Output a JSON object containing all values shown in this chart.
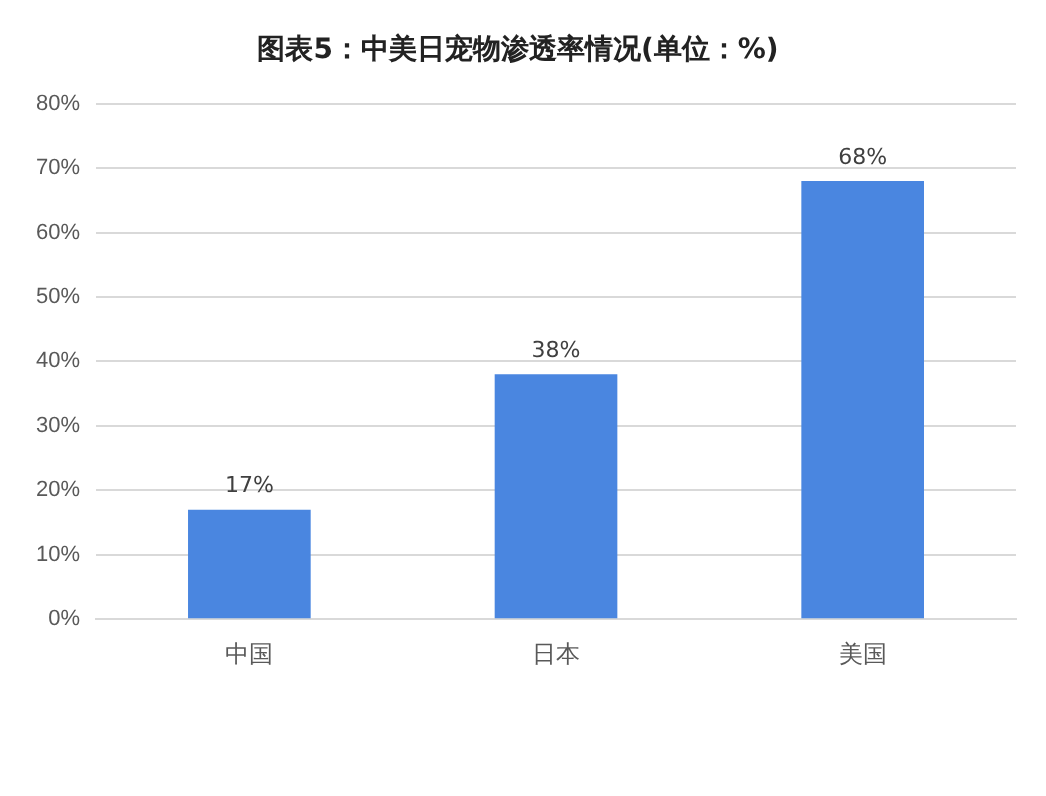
{
  "chart_data": {
    "type": "bar",
    "title": "图表5：中美日宠物渗透率情况(单位：%)",
    "categories": [
      "中国",
      "日本",
      "美国"
    ],
    "values": [
      17,
      38,
      68
    ],
    "value_labels": [
      "17%",
      "38%",
      "68%"
    ],
    "color": "#4a86e0",
    "ylim": [
      0,
      80
    ],
    "yticks": [
      {
        "value": 0,
        "label": "0%"
      },
      {
        "value": 10,
        "label": "10%"
      },
      {
        "value": 20,
        "label": "20%"
      },
      {
        "value": 30,
        "label": "30%"
      },
      {
        "value": 40,
        "label": "40%"
      },
      {
        "value": 50,
        "label": "50%"
      },
      {
        "value": 60,
        "label": "60%"
      },
      {
        "value": 70,
        "label": "70%"
      },
      {
        "value": 80,
        "label": "80%"
      }
    ],
    "grid": "y"
  }
}
